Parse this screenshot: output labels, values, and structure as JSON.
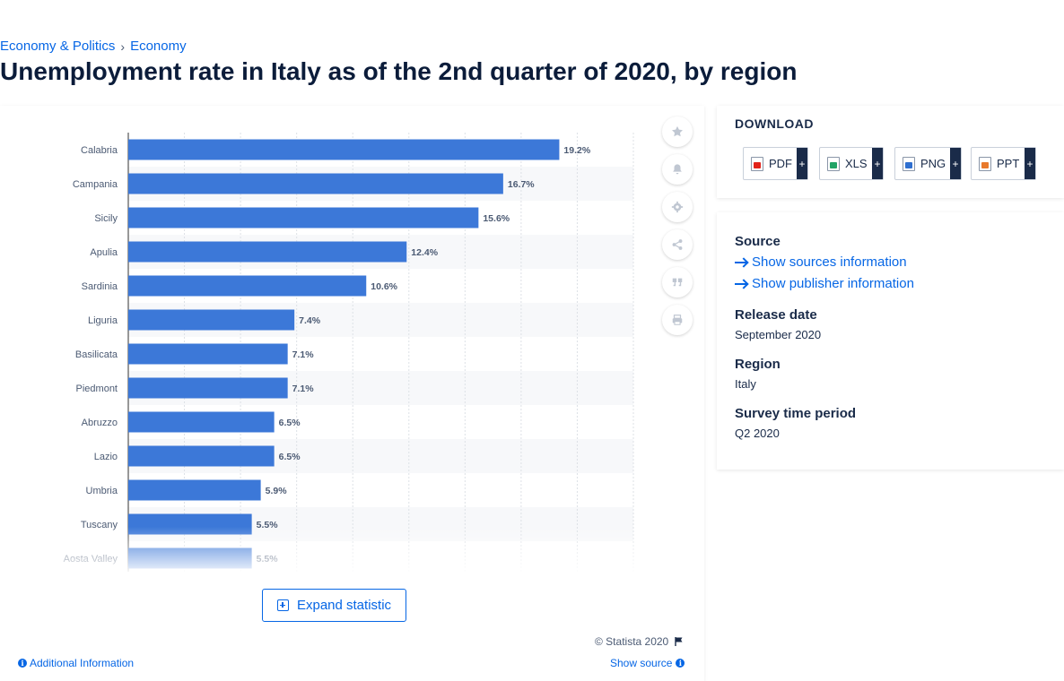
{
  "breadcrumb": {
    "items": [
      "Economy & Politics",
      "Economy"
    ],
    "separator": "›"
  },
  "page_title": "Unemployment rate in Italy as of the 2nd quarter of 2020, by region",
  "chart_actions": {
    "icons": [
      "star-icon",
      "bell-icon",
      "gear-icon",
      "share-icon",
      "quote-icon",
      "print-icon"
    ]
  },
  "chart_data": {
    "type": "bar",
    "orientation": "horizontal",
    "categories": [
      "Calabria",
      "Campania",
      "Sicily",
      "Apulia",
      "Sardinia",
      "Liguria",
      "Basilicata",
      "Piedmont",
      "Abruzzo",
      "Lazio",
      "Umbria",
      "Tuscany",
      "Aosta Valley"
    ],
    "values": [
      19.2,
      16.7,
      15.6,
      12.4,
      10.6,
      7.4,
      7.1,
      7.1,
      6.5,
      6.5,
      5.9,
      5.5,
      5.5
    ],
    "value_labels": [
      "19.2%",
      "16.7%",
      "15.6%",
      "12.4%",
      "10.6%",
      "7.4%",
      "7.1%",
      "7.1%",
      "6.5%",
      "6.5%",
      "5.9%",
      "5.5%",
      "5.5%"
    ],
    "xlim": [
      0,
      22.5
    ],
    "grid": true,
    "bar_color": "#3c78d8"
  },
  "expand_button": {
    "label": "Expand statistic"
  },
  "copyright": "© Statista 2020",
  "footer": {
    "additional_info": "Additional Information",
    "show_source": "Show source"
  },
  "download": {
    "title": "DOWNLOAD",
    "buttons": [
      {
        "label": "PDF",
        "plus": "+",
        "color": "#e2231a"
      },
      {
        "label": "XLS",
        "plus": "+",
        "color": "#21a366"
      },
      {
        "label": "PNG",
        "plus": "+",
        "color": "#2f6fd0"
      },
      {
        "label": "PPT",
        "plus": "+",
        "color": "#e8792b"
      }
    ]
  },
  "details": {
    "source_label": "Source",
    "show_sources": "Show sources information",
    "show_publisher": "Show publisher information",
    "release_date_label": "Release date",
    "release_date": "September 2020",
    "region_label": "Region",
    "region": "Italy",
    "survey_period_label": "Survey time period",
    "survey_period": "Q2 2020"
  },
  "colors": {
    "accent": "#0666e5",
    "bar": "#3c78d8",
    "text_dark": "#0b1c3a"
  }
}
